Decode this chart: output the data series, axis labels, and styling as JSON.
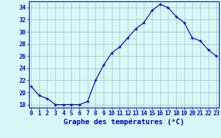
{
  "hours": [
    0,
    1,
    2,
    3,
    4,
    5,
    6,
    7,
    8,
    9,
    10,
    11,
    12,
    13,
    14,
    15,
    16,
    17,
    18,
    19,
    20,
    21,
    22,
    23
  ],
  "temperatures": [
    21,
    19.5,
    19,
    18,
    18,
    18,
    18,
    18.5,
    22,
    24.5,
    26.5,
    27.5,
    29,
    30.5,
    31.5,
    33.5,
    34.5,
    34,
    32.5,
    31.5,
    29,
    28.5,
    27,
    26
  ],
  "xlabel": "Graphe des températures (°C)",
  "ylim": [
    17.5,
    35
  ],
  "yticks": [
    18,
    20,
    22,
    24,
    26,
    28,
    30,
    32,
    34
  ],
  "xlim": [
    -0.3,
    23.3
  ],
  "line_color": "#0000cc",
  "marker": "+",
  "bg_color": "#d8f8f8",
  "grid_color": "#9fbfbf",
  "spine_color": "#0000cc",
  "tick_label_color": "#0000cc",
  "xlabel_color": "#0000cc",
  "xlabel_fontsize": 7.5,
  "tick_fontsize": 6.0
}
